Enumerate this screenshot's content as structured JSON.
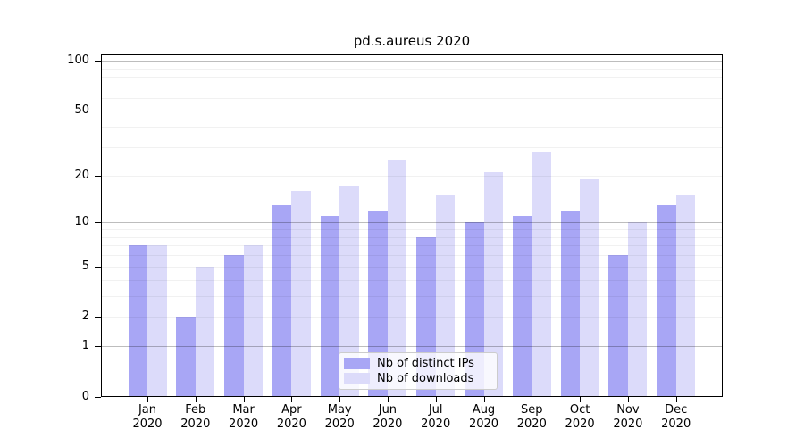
{
  "title": "pd.s.aureus 2020",
  "chart_data": {
    "type": "bar",
    "title": "pd.s.aureus 2020",
    "scale": "log1p",
    "categories": [
      "Jan",
      "Feb",
      "Mar",
      "Apr",
      "May",
      "Jun",
      "Jul",
      "Aug",
      "Sep",
      "Oct",
      "Nov",
      "Dec"
    ],
    "year_label": "2020",
    "series": [
      {
        "name": "Nb of distinct IPs",
        "color": "#a8a6f5",
        "values": [
          7,
          2,
          6,
          13,
          11,
          12,
          8,
          10,
          11,
          12,
          6,
          13
        ]
      },
      {
        "name": "Nb of downloads",
        "color": "#dcdbfa",
        "values": [
          7,
          5,
          7,
          16,
          17,
          25,
          15,
          21,
          28,
          19,
          10,
          15
        ]
      }
    ],
    "yticks": [
      0,
      1,
      2,
      5,
      10,
      20,
      50,
      100
    ],
    "major_gridlines": [
      1,
      10,
      100
    ],
    "minor_gridlines": [
      2,
      3,
      4,
      5,
      6,
      7,
      8,
      9,
      20,
      30,
      40,
      50,
      60,
      70,
      80,
      90
    ],
    "ylim": [
      0,
      110
    ],
    "xlabel": "",
    "ylabel": "",
    "grid": true,
    "legend_position": "lower center",
    "colors": {
      "major_grid": "#bdbdbd",
      "minor_grid": "#ebebeb",
      "spine": "#000000",
      "background": "#ffffff"
    }
  }
}
